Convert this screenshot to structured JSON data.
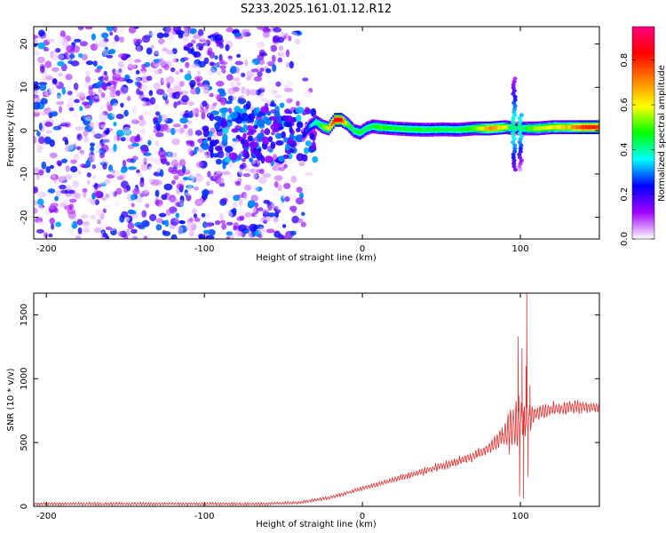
{
  "title": "S233.2025.161.01.12.R12",
  "chart_data": [
    {
      "type": "heatmap",
      "title": "",
      "xlabel": "Height of straight line (km)",
      "ylabel": "Frequency (Hz)",
      "xlim": [
        -208,
        150
      ],
      "ylim": [
        -25,
        24
      ],
      "xticks": [
        -200,
        -100,
        0,
        100
      ],
      "yticks": [
        -20,
        -10,
        0,
        10,
        20
      ],
      "colorbar": {
        "label": "Normalized spectral amplitude",
        "range": [
          0.0,
          0.95
        ],
        "ticks": [
          0.0,
          0.2,
          0.4,
          0.6,
          0.8
        ],
        "colormap": [
          "#ffffff",
          "#a000ff",
          "#0000ff",
          "#00ffff",
          "#00ff00",
          "#ffff00",
          "#ff8000",
          "#ff0000",
          "#ff0080"
        ]
      },
      "noise_region_x": [
        -208,
        -30
      ],
      "ridge": {
        "x": [
          -38,
          -34,
          -30,
          -26,
          -22,
          -18,
          -14,
          -10,
          -6,
          -2,
          2,
          6,
          10,
          20,
          30,
          40,
          50,
          60,
          70,
          80,
          90,
          96,
          104,
          110,
          120,
          130,
          140,
          150
        ],
        "frequency": [
          -1,
          1,
          2,
          1,
          0.5,
          2.5,
          2.5,
          1.5,
          0,
          -0.5,
          0.5,
          1,
          0.8,
          0.5,
          0.3,
          0.2,
          0.3,
          0.2,
          0.5,
          0.5,
          0.8,
          0.5,
          0.5,
          0.5,
          0.8,
          0.8,
          0.8,
          0.8
        ],
        "amplitude": [
          0.2,
          0.3,
          0.4,
          0.5,
          0.6,
          0.85,
          0.85,
          0.5,
          0.45,
          0.45,
          0.45,
          0.45,
          0.5,
          0.45,
          0.45,
          0.45,
          0.45,
          0.45,
          0.5,
          0.7,
          0.6,
          0.3,
          0.5,
          0.55,
          0.6,
          0.65,
          0.8,
          0.8
        ]
      },
      "spikes": [
        {
          "x": 96,
          "frequency_range": [
            -9,
            12
          ]
        },
        {
          "x": 100,
          "frequency_range": [
            -9,
            4
          ]
        }
      ]
    },
    {
      "type": "line",
      "title": "",
      "xlabel": "Height of straight line (km)",
      "ylabel": "SNR (10 * v/v)",
      "xlim": [
        -208,
        150
      ],
      "ylim": [
        0,
        1670
      ],
      "xticks": [
        -200,
        -100,
        0,
        100
      ],
      "yticks": [
        0,
        500,
        1000,
        1500
      ],
      "color": "#e03030",
      "trend": {
        "x": [
          -208,
          -150,
          -100,
          -60,
          -40,
          -20,
          0,
          20,
          40,
          60,
          70,
          80,
          90,
          95,
          105,
          110,
          120,
          130,
          140,
          150
        ],
        "snr": [
          20,
          20,
          20,
          20,
          30,
          70,
          140,
          210,
          280,
          350,
          390,
          460,
          560,
          640,
          700,
          730,
          760,
          775,
          780,
          770
        ]
      },
      "oscillation_amplitude": {
        "x": [
          -208,
          -40,
          0,
          40,
          80,
          90,
          95,
          105,
          110,
          150
        ],
        "amp": [
          10,
          10,
          15,
          25,
          40,
          90,
          200,
          120,
          50,
          40
        ]
      },
      "spikes": [
        {
          "x": 98.5,
          "snr": 1330
        },
        {
          "x": 99.5,
          "snr": 80
        },
        {
          "x": 101.0,
          "snr": 1240
        },
        {
          "x": 102.0,
          "snr": 60
        },
        {
          "x": 103.5,
          "snr": 1100
        },
        {
          "x": 104.0,
          "snr": 1670
        },
        {
          "x": 104.8,
          "snr": 230
        },
        {
          "x": 106.0,
          "snr": 950
        }
      ]
    }
  ]
}
